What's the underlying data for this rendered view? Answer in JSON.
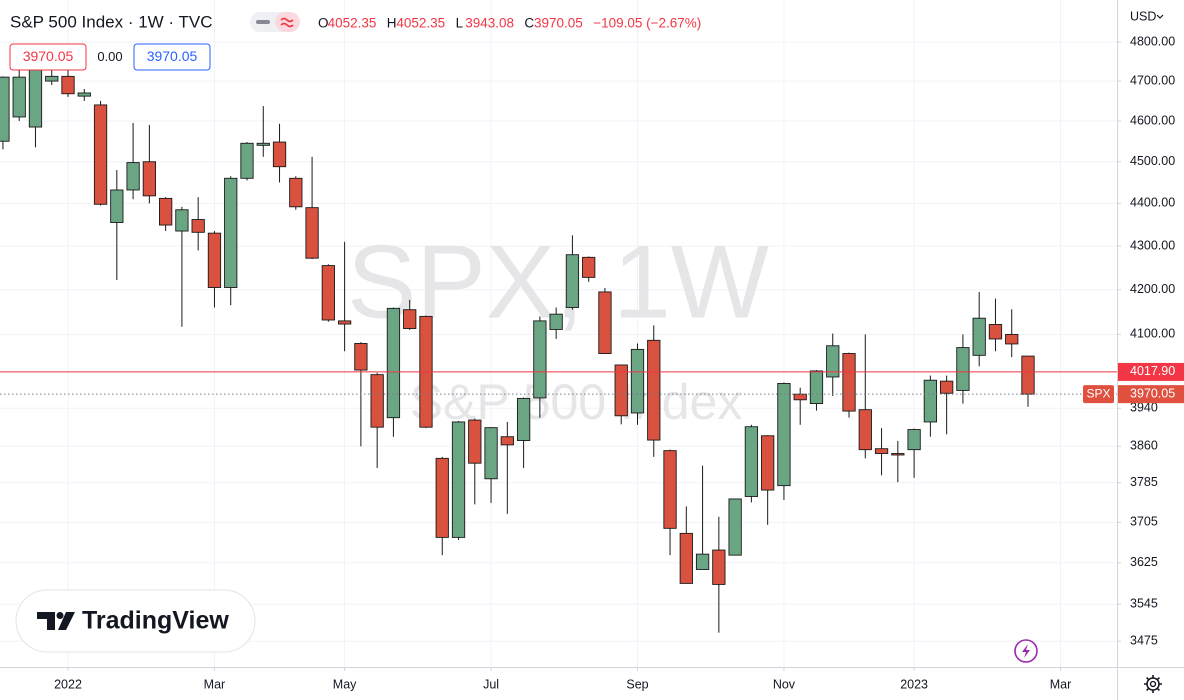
{
  "chart_data": {
    "type": "candlestick",
    "title": "S&P 500 Index · 1W · TVC",
    "ohlc_legend": [
      [
        "O",
        "4052.35"
      ],
      [
        "H",
        "4052.35"
      ],
      [
        "L",
        "3943.08"
      ],
      [
        "C",
        "3970.05"
      ]
    ],
    "change": "−109.05 (−2.67%)",
    "quote_boxes": [
      "3970.05",
      "0.00",
      "3970.05"
    ],
    "watermark": [
      "SPX, 1W",
      "S&P 500 Index"
    ],
    "currency": "USD",
    "brand": "TradingView",
    "open": [
      4550,
      4610,
      4585,
      4700,
      4712,
      4662,
      4640,
      4355,
      4432,
      4500,
      4412,
      4335,
      4362,
      4330,
      4205,
      4460,
      4540,
      4548,
      4460,
      4390,
      4255,
      4130,
      4080,
      4012,
      3920,
      4155,
      4140,
      3835,
      3675,
      3915,
      3793,
      3880,
      3872,
      3962,
      4111,
      4160,
      4274,
      4195,
      4033,
      3930,
      4087,
      3851,
      3683,
      3612,
      3650,
      3640,
      3757,
      3882,
      3779,
      3970,
      3950,
      4007,
      4058,
      3937,
      3855,
      3845,
      3853,
      3911,
      3998,
      3978,
      4054,
      4122,
      4100,
      4052.35
    ],
    "high": [
      4712,
      4730,
      4748,
      4750,
      4740,
      4680,
      4650,
      4480,
      4595,
      4590,
      4415,
      4392,
      4415,
      4335,
      4465,
      4548,
      4637,
      4593,
      4465,
      4512,
      4258,
      4310,
      4083,
      4016,
      4160,
      4177,
      4142,
      3838,
      3913,
      3918,
      3900,
      3911,
      3963,
      4140,
      4160,
      4325,
      4276,
      4204,
      4034,
      4080,
      4120,
      3853,
      3737,
      3820,
      3716,
      3752,
      3905,
      3883,
      3995,
      3984,
      4022,
      4102,
      4060,
      4100,
      3898,
      3871,
      3897,
      4010,
      4010,
      4100,
      4195,
      4180,
      4156,
      4052.35
    ],
    "low": [
      4530,
      4600,
      4535,
      4690,
      4660,
      4650,
      4395,
      4222,
      4410,
      4400,
      4335,
      4117,
      4290,
      4160,
      4165,
      4455,
      4512,
      4450,
      4385,
      4270,
      4128,
      4063,
      3860,
      3815,
      3880,
      4110,
      3898,
      3640,
      3670,
      3741,
      3744,
      3722,
      3815,
      3920,
      4090,
      4155,
      4218,
      4057,
      3906,
      3905,
      3838,
      3640,
      3585,
      3612,
      3491,
      3640,
      3745,
      3700,
      3750,
      3905,
      3935,
      3966,
      3920,
      3835,
      3800,
      3786,
      3795,
      3880,
      3885,
      3950,
      4030,
      4063,
      4050,
      3943.08
    ],
    "close": [
      4710,
      4710,
      4728,
      4712,
      4668,
      4670,
      4398,
      4432,
      4498,
      4418,
      4349,
      4385,
      4332,
      4205,
      4460,
      4545,
      4545,
      4488,
      4392,
      4272,
      4132,
      4123,
      4022,
      3900,
      4158,
      4113,
      3900,
      3675,
      3911,
      3825,
      3899,
      3863,
      3961,
      4130,
      4145,
      4280,
      4228,
      4058,
      3924,
      4067,
      3873,
      3693,
      3585,
      3642,
      3583,
      3752,
      3901,
      3770,
      3993,
      3958,
      4020,
      4075,
      3934,
      3853,
      3845,
      3842,
      3895,
      4000,
      3972,
      4071,
      4136,
      4090,
      4079,
      3970.05
    ],
    "up_color": "#6aa584",
    "down_color": "#d9513f",
    "log": true,
    "grid": true,
    "xlim": [
      -0.18,
      68.47
    ],
    "xticks": [
      {
        "value": 4,
        "label": "2022"
      },
      {
        "value": 13,
        "label": "Mar"
      },
      {
        "value": 21,
        "label": "May"
      },
      {
        "value": 30,
        "label": "Jul"
      },
      {
        "value": 39,
        "label": "Sep"
      },
      {
        "value": 48,
        "label": "Nov"
      },
      {
        "value": 56,
        "label": "2023"
      },
      {
        "value": 65,
        "label": "Mar"
      }
    ],
    "ylim": [
      3427,
      4910
    ],
    "yticks": [
      {
        "value": 4800,
        "label": "4800.00"
      },
      {
        "value": 4700,
        "label": "4700.00"
      },
      {
        "value": 4600,
        "label": "4600.00"
      },
      {
        "value": 4500,
        "label": "4500.00"
      },
      {
        "value": 4400,
        "label": "4400.00"
      },
      {
        "value": 4300,
        "label": "4300.00"
      },
      {
        "value": 4200,
        "label": "4200.00"
      },
      {
        "value": 4100,
        "label": "4100.00"
      },
      3940,
      3860,
      3785,
      3705,
      3625,
      3545,
      3475
    ],
    "price_lines": [
      {
        "value": 4017.9,
        "label": "4017.90",
        "color": "#f23645",
        "style": "solid"
      },
      {
        "name": "SPX",
        "value": 3970.05,
        "label": "3970.05",
        "color": "#e0503f",
        "style": "dotted"
      }
    ]
  }
}
